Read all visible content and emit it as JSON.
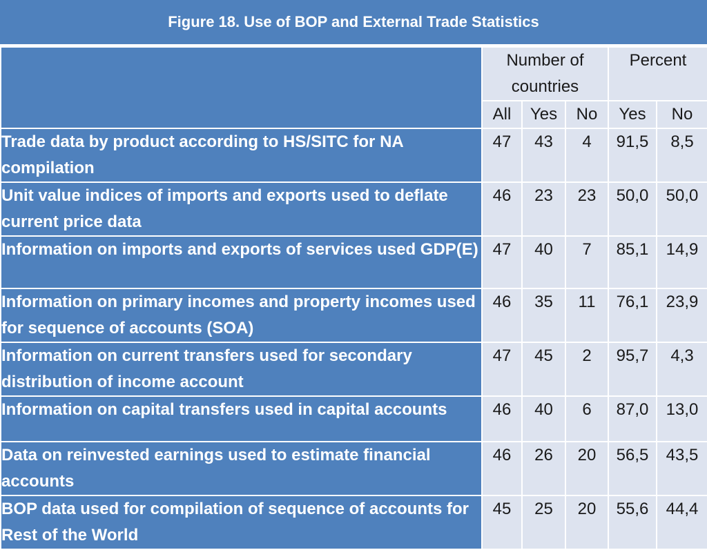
{
  "figure": {
    "title": "Figure 18. Use of BOP and External Trade Statistics"
  },
  "table": {
    "group_headers": {
      "number_line1": "Number of",
      "number_line2": "countries",
      "percent": "Percent"
    },
    "sub_headers": [
      "All",
      "Yes",
      "No",
      "Yes",
      "No"
    ],
    "rows": [
      {
        "label": "Trade data by product according to HS/SITC for NA compilation",
        "all": "47",
        "yes": "43",
        "no": "4",
        "pct_yes": "91,5",
        "pct_no": "8,5"
      },
      {
        "label": "Unit value indices of imports and exports used to deflate current price data",
        "all": "46",
        "yes": "23",
        "no": "23",
        "pct_yes": "50,0",
        "pct_no": "50,0"
      },
      {
        "label": "Information on imports and exports of services used GDP(E)",
        "all": "47",
        "yes": "40",
        "no": "7",
        "pct_yes": "85,1",
        "pct_no": "14,9"
      },
      {
        "label": "Information on primary incomes and property incomes used for sequence of accounts (SOA)",
        "all": "46",
        "yes": "35",
        "no": "11",
        "pct_yes": "76,1",
        "pct_no": "23,9"
      },
      {
        "label": "Information on current transfers used for secondary distribution of income account",
        "all": "47",
        "yes": "45",
        "no": "2",
        "pct_yes": "95,7",
        "pct_no": "4,3"
      },
      {
        "label": "Information on capital transfers used in capital accounts",
        "all": "46",
        "yes": "40",
        "no": "6",
        "pct_yes": "87,0",
        "pct_no": "13,0"
      },
      {
        "label": "Data on reinvested earnings used to estimate financial accounts",
        "all": "46",
        "yes": "26",
        "no": "20",
        "pct_yes": "56,5",
        "pct_no": "43,5"
      },
      {
        "label": "BOP data used for compilation of sequence of accounts for Rest of the World",
        "all": "45",
        "yes": "25",
        "no": "20",
        "pct_yes": "55,6",
        "pct_no": "44,4"
      }
    ]
  },
  "colors": {
    "header_blue": "#4f81bd",
    "cell_light": "#dde3ef",
    "text_white": "#ffffff"
  }
}
